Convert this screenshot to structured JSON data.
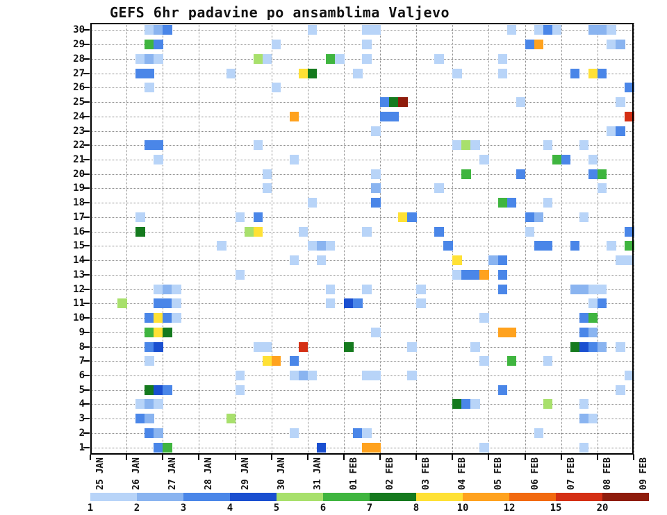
{
  "title": "GEFS 6hr padavine po ansamblima Valjevo",
  "chart_data": {
    "type": "heatmap",
    "title": "GEFS 6hr padavine po ansamblima Valjevo",
    "x_tick_labels": [
      "25 JAN",
      "26 JAN",
      "27 JAN",
      "28 JAN",
      "29 JAN",
      "30 JAN",
      "31 JAN",
      "01 FEB",
      "02 FEB",
      "03 FEB",
      "04 FEB",
      "05 FEB",
      "06 FEB",
      "07 FEB",
      "08 FEB",
      "09 FEB"
    ],
    "steps_per_day": 4,
    "n_time_steps": 60,
    "members": [
      1,
      2,
      3,
      4,
      5,
      6,
      7,
      8,
      9,
      10,
      11,
      12,
      13,
      14,
      15,
      16,
      17,
      18,
      19,
      20,
      21,
      22,
      23,
      24,
      25,
      26,
      27,
      28,
      29,
      30
    ],
    "legend": {
      "tick_labels": [
        "1",
        "2",
        "3",
        "4",
        "5",
        "6",
        "7",
        "8",
        "10",
        "12",
        "15",
        "20"
      ],
      "colors": [
        "#b8d4f8",
        "#8ab4f0",
        "#4a86e8",
        "#1a4fd0",
        "#a8e06c",
        "#3fb53f",
        "#157a1e",
        "#ffe135",
        "#ffa21e",
        "#f26a10",
        "#d42f14",
        "#8e1c0c"
      ]
    },
    "cell_format": "[time_step_index, ensemble_member, color_level_index]",
    "cells": [
      [
        6,
        30,
        0
      ],
      [
        7,
        30,
        1
      ],
      [
        8,
        30,
        2
      ],
      [
        24,
        30,
        0
      ],
      [
        30,
        30,
        0
      ],
      [
        31,
        30,
        0
      ],
      [
        46,
        30,
        0
      ],
      [
        49,
        30,
        0
      ],
      [
        50,
        30,
        2
      ],
      [
        51,
        30,
        0
      ],
      [
        55,
        30,
        1
      ],
      [
        56,
        30,
        1
      ],
      [
        57,
        30,
        0
      ],
      [
        6,
        29,
        5
      ],
      [
        7,
        29,
        2
      ],
      [
        20,
        29,
        0
      ],
      [
        30,
        29,
        0
      ],
      [
        48,
        29,
        2
      ],
      [
        49,
        29,
        8
      ],
      [
        57,
        29,
        0
      ],
      [
        58,
        29,
        1
      ],
      [
        5,
        28,
        0
      ],
      [
        6,
        28,
        1
      ],
      [
        7,
        28,
        0
      ],
      [
        18,
        28,
        4
      ],
      [
        19,
        28,
        0
      ],
      [
        26,
        28,
        5
      ],
      [
        27,
        28,
        0
      ],
      [
        30,
        28,
        0
      ],
      [
        38,
        28,
        0
      ],
      [
        45,
        28,
        0
      ],
      [
        5,
        27,
        2
      ],
      [
        6,
        27,
        2
      ],
      [
        15,
        27,
        0
      ],
      [
        23,
        27,
        7
      ],
      [
        24,
        27,
        6
      ],
      [
        29,
        27,
        0
      ],
      [
        40,
        27,
        0
      ],
      [
        45,
        27,
        0
      ],
      [
        53,
        27,
        2
      ],
      [
        55,
        27,
        7
      ],
      [
        56,
        27,
        2
      ],
      [
        6,
        26,
        0
      ],
      [
        20,
        26,
        0
      ],
      [
        59,
        26,
        2
      ],
      [
        32,
        25,
        2
      ],
      [
        33,
        25,
        6
      ],
      [
        34,
        25,
        11
      ],
      [
        47,
        25,
        0
      ],
      [
        58,
        25,
        0
      ],
      [
        22,
        24,
        8
      ],
      [
        32,
        24,
        2
      ],
      [
        33,
        24,
        2
      ],
      [
        59,
        24,
        10
      ],
      [
        31,
        23,
        0
      ],
      [
        57,
        23,
        0
      ],
      [
        58,
        23,
        2
      ],
      [
        6,
        22,
        2
      ],
      [
        7,
        22,
        2
      ],
      [
        18,
        22,
        0
      ],
      [
        40,
        22,
        0
      ],
      [
        41,
        22,
        4
      ],
      [
        42,
        22,
        0
      ],
      [
        50,
        22,
        0
      ],
      [
        54,
        22,
        0
      ],
      [
        7,
        21,
        0
      ],
      [
        22,
        21,
        0
      ],
      [
        43,
        21,
        0
      ],
      [
        51,
        21,
        5
      ],
      [
        52,
        21,
        2
      ],
      [
        55,
        21,
        0
      ],
      [
        19,
        20,
        0
      ],
      [
        31,
        20,
        0
      ],
      [
        41,
        20,
        5
      ],
      [
        47,
        20,
        2
      ],
      [
        55,
        20,
        2
      ],
      [
        56,
        20,
        5
      ],
      [
        19,
        19,
        0
      ],
      [
        31,
        19,
        1
      ],
      [
        38,
        19,
        0
      ],
      [
        56,
        19,
        0
      ],
      [
        24,
        18,
        0
      ],
      [
        31,
        18,
        2
      ],
      [
        45,
        18,
        5
      ],
      [
        46,
        18,
        2
      ],
      [
        50,
        18,
        0
      ],
      [
        5,
        17,
        0
      ],
      [
        16,
        17,
        0
      ],
      [
        18,
        17,
        2
      ],
      [
        34,
        17,
        7
      ],
      [
        35,
        17,
        2
      ],
      [
        48,
        17,
        2
      ],
      [
        49,
        17,
        1
      ],
      [
        54,
        17,
        0
      ],
      [
        5,
        16,
        6
      ],
      [
        17,
        16,
        4
      ],
      [
        18,
        16,
        7
      ],
      [
        23,
        16,
        0
      ],
      [
        30,
        16,
        0
      ],
      [
        38,
        16,
        2
      ],
      [
        48,
        16,
        0
      ],
      [
        59,
        16,
        2
      ],
      [
        14,
        15,
        0
      ],
      [
        24,
        15,
        0
      ],
      [
        25,
        15,
        1
      ],
      [
        26,
        15,
        0
      ],
      [
        39,
        15,
        2
      ],
      [
        49,
        15,
        2
      ],
      [
        50,
        15,
        2
      ],
      [
        53,
        15,
        2
      ],
      [
        57,
        15,
        0
      ],
      [
        59,
        15,
        5
      ],
      [
        22,
        14,
        0
      ],
      [
        25,
        14,
        0
      ],
      [
        40,
        14,
        7
      ],
      [
        44,
        14,
        1
      ],
      [
        45,
        14,
        2
      ],
      [
        58,
        14,
        0
      ],
      [
        59,
        14,
        0
      ],
      [
        16,
        13,
        0
      ],
      [
        40,
        13,
        0
      ],
      [
        41,
        13,
        2
      ],
      [
        42,
        13,
        2
      ],
      [
        43,
        13,
        8
      ],
      [
        45,
        13,
        2
      ],
      [
        7,
        12,
        0
      ],
      [
        8,
        12,
        1
      ],
      [
        9,
        12,
        0
      ],
      [
        26,
        12,
        0
      ],
      [
        30,
        12,
        0
      ],
      [
        36,
        12,
        0
      ],
      [
        45,
        12,
        2
      ],
      [
        53,
        12,
        1
      ],
      [
        54,
        12,
        1
      ],
      [
        55,
        12,
        0
      ],
      [
        56,
        12,
        0
      ],
      [
        3,
        11,
        4
      ],
      [
        7,
        11,
        2
      ],
      [
        8,
        11,
        2
      ],
      [
        9,
        11,
        0
      ],
      [
        26,
        11,
        0
      ],
      [
        28,
        11,
        3
      ],
      [
        29,
        11,
        2
      ],
      [
        36,
        11,
        0
      ],
      [
        55,
        11,
        0
      ],
      [
        56,
        11,
        2
      ],
      [
        6,
        10,
        2
      ],
      [
        7,
        10,
        7
      ],
      [
        8,
        10,
        2
      ],
      [
        9,
        10,
        0
      ],
      [
        43,
        10,
        0
      ],
      [
        54,
        10,
        2
      ],
      [
        55,
        10,
        5
      ],
      [
        6,
        9,
        5
      ],
      [
        7,
        9,
        7
      ],
      [
        8,
        9,
        6
      ],
      [
        31,
        9,
        0
      ],
      [
        45,
        9,
        8
      ],
      [
        46,
        9,
        8
      ],
      [
        54,
        9,
        2
      ],
      [
        55,
        9,
        1
      ],
      [
        6,
        8,
        2
      ],
      [
        7,
        8,
        3
      ],
      [
        18,
        8,
        0
      ],
      [
        19,
        8,
        0
      ],
      [
        23,
        8,
        10
      ],
      [
        28,
        8,
        6
      ],
      [
        35,
        8,
        0
      ],
      [
        42,
        8,
        0
      ],
      [
        53,
        8,
        6
      ],
      [
        54,
        8,
        3
      ],
      [
        55,
        8,
        2
      ],
      [
        56,
        8,
        1
      ],
      [
        58,
        8,
        0
      ],
      [
        6,
        7,
        0
      ],
      [
        19,
        7,
        7
      ],
      [
        20,
        7,
        8
      ],
      [
        22,
        7,
        2
      ],
      [
        43,
        7,
        0
      ],
      [
        46,
        7,
        5
      ],
      [
        50,
        7,
        0
      ],
      [
        16,
        6,
        0
      ],
      [
        22,
        6,
        0
      ],
      [
        23,
        6,
        1
      ],
      [
        24,
        6,
        0
      ],
      [
        30,
        6,
        0
      ],
      [
        31,
        6,
        0
      ],
      [
        35,
        6,
        0
      ],
      [
        59,
        6,
        0
      ],
      [
        6,
        5,
        6
      ],
      [
        7,
        5,
        3
      ],
      [
        8,
        5,
        2
      ],
      [
        16,
        5,
        0
      ],
      [
        45,
        5,
        2
      ],
      [
        58,
        5,
        0
      ],
      [
        5,
        4,
        0
      ],
      [
        6,
        4,
        1
      ],
      [
        7,
        4,
        0
      ],
      [
        40,
        4,
        6
      ],
      [
        41,
        4,
        2
      ],
      [
        42,
        4,
        0
      ],
      [
        50,
        4,
        4
      ],
      [
        54,
        4,
        0
      ],
      [
        5,
        3,
        2
      ],
      [
        6,
        3,
        1
      ],
      [
        15,
        3,
        4
      ],
      [
        54,
        3,
        1
      ],
      [
        55,
        3,
        0
      ],
      [
        6,
        2,
        2
      ],
      [
        7,
        2,
        1
      ],
      [
        22,
        2,
        0
      ],
      [
        29,
        2,
        2
      ],
      [
        30,
        2,
        0
      ],
      [
        49,
        2,
        0
      ],
      [
        7,
        1,
        2
      ],
      [
        8,
        1,
        5
      ],
      [
        25,
        1,
        3
      ],
      [
        30,
        1,
        8
      ],
      [
        31,
        1,
        8
      ],
      [
        43,
        1,
        0
      ],
      [
        54,
        1,
        0
      ]
    ]
  }
}
